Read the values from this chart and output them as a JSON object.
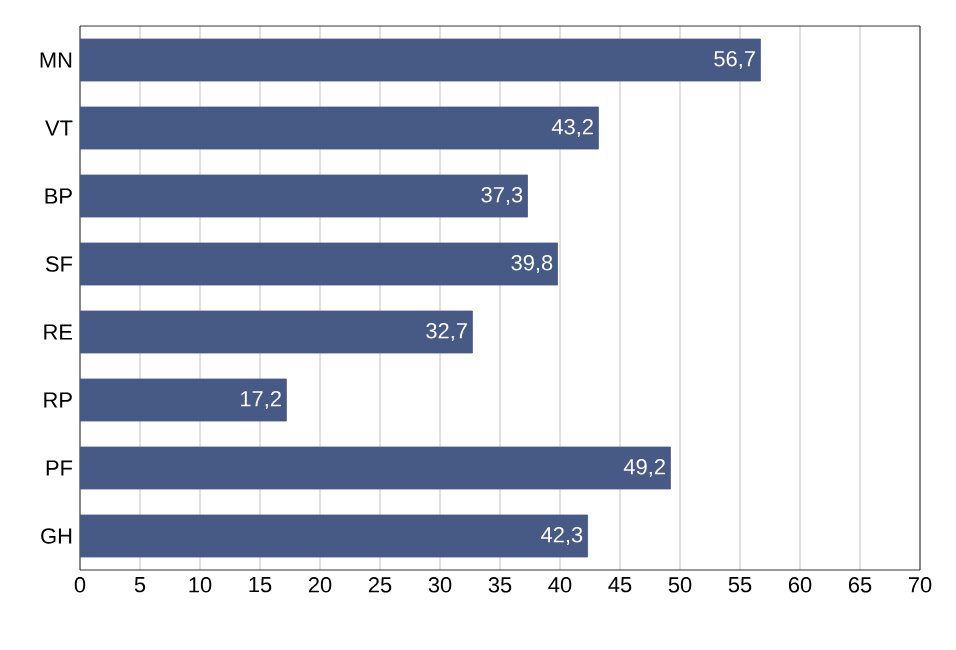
{
  "chart_data": {
    "type": "bar",
    "orientation": "horizontal",
    "categories": [
      "MN",
      "VT",
      "BP",
      "SF",
      "RE",
      "RP",
      "PF",
      "GH"
    ],
    "values": [
      56.7,
      43.2,
      37.3,
      39.8,
      32.7,
      17.2,
      49.2,
      42.3
    ],
    "value_labels": [
      "56,7",
      "43,2",
      "37,3",
      "39,8",
      "32,7",
      "17,2",
      "49,2",
      "42,3"
    ],
    "color": "#475a86",
    "xlim": [
      0,
      70
    ],
    "xticks": [
      0,
      5,
      10,
      15,
      20,
      25,
      30,
      35,
      40,
      45,
      50,
      55,
      60,
      65,
      70
    ],
    "grid": "x"
  }
}
